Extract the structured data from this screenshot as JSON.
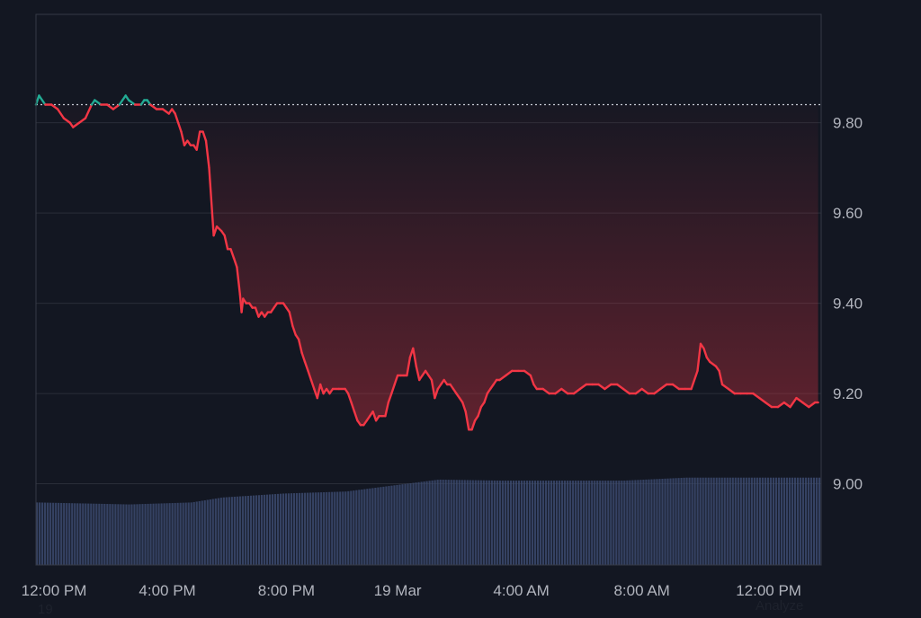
{
  "chart_data": {
    "type": "area",
    "title": "",
    "xlabel": "",
    "ylabel": "",
    "x_ticks": [
      "12:00 PM",
      "4:00 PM",
      "8:00 PM",
      "19 Mar",
      "4:00 AM",
      "8:00 AM",
      "12:00 PM"
    ],
    "y_ticks": [
      "9.80",
      "9.60",
      "9.40",
      "9.20",
      "9.00"
    ],
    "ylim": [
      8.82,
      10.04
    ],
    "xlim": [
      0,
      25.4
    ],
    "x_unit": "hours since 12:00 PM",
    "reference_price": 9.84,
    "grid": true,
    "colors": {
      "background": "#131722",
      "line_down": "#f23645",
      "line_up": "#22ab94",
      "grid": "#2a2e39",
      "volume": "#3c4a6e",
      "reference_line": "#c8ccd6"
    },
    "series": [
      {
        "values": [
          [
            0.0,
            9.84
          ],
          [
            0.1,
            9.86
          ],
          [
            0.3,
            9.84
          ],
          [
            0.5,
            9.84
          ],
          [
            0.7,
            9.83
          ],
          [
            0.9,
            9.81
          ],
          [
            1.1,
            9.8
          ],
          [
            1.2,
            9.79
          ],
          [
            1.4,
            9.8
          ],
          [
            1.6,
            9.81
          ],
          [
            1.8,
            9.84
          ],
          [
            1.9,
            9.85
          ],
          [
            2.1,
            9.84
          ],
          [
            2.3,
            9.84
          ],
          [
            2.5,
            9.83
          ],
          [
            2.7,
            9.84
          ],
          [
            2.8,
            9.85
          ],
          [
            2.9,
            9.86
          ],
          [
            3.0,
            9.85
          ],
          [
            3.2,
            9.84
          ],
          [
            3.4,
            9.84
          ],
          [
            3.5,
            9.85
          ],
          [
            3.6,
            9.85
          ],
          [
            3.7,
            9.84
          ],
          [
            3.9,
            9.83
          ],
          [
            4.1,
            9.83
          ],
          [
            4.3,
            9.82
          ],
          [
            4.4,
            9.83
          ],
          [
            4.5,
            9.82
          ],
          [
            4.6,
            9.8
          ],
          [
            4.7,
            9.78
          ],
          [
            4.8,
            9.75
          ],
          [
            4.9,
            9.76
          ],
          [
            5.0,
            9.75
          ],
          [
            5.1,
            9.75
          ],
          [
            5.2,
            9.74
          ],
          [
            5.3,
            9.78
          ],
          [
            5.4,
            9.78
          ],
          [
            5.5,
            9.76
          ],
          [
            5.6,
            9.7
          ],
          [
            5.7,
            9.6
          ],
          [
            5.75,
            9.55
          ],
          [
            5.85,
            9.57
          ],
          [
            6.0,
            9.56
          ],
          [
            6.1,
            9.55
          ],
          [
            6.2,
            9.52
          ],
          [
            6.3,
            9.52
          ],
          [
            6.4,
            9.5
          ],
          [
            6.5,
            9.48
          ],
          [
            6.6,
            9.42
          ],
          [
            6.65,
            9.38
          ],
          [
            6.7,
            9.41
          ],
          [
            6.8,
            9.4
          ],
          [
            6.9,
            9.4
          ],
          [
            7.0,
            9.39
          ],
          [
            7.1,
            9.39
          ],
          [
            7.2,
            9.37
          ],
          [
            7.3,
            9.38
          ],
          [
            7.4,
            9.37
          ],
          [
            7.5,
            9.38
          ],
          [
            7.6,
            9.38
          ],
          [
            7.7,
            9.39
          ],
          [
            7.8,
            9.4
          ],
          [
            7.9,
            9.4
          ],
          [
            8.0,
            9.4
          ],
          [
            8.1,
            9.39
          ],
          [
            8.2,
            9.38
          ],
          [
            8.3,
            9.35
          ],
          [
            8.4,
            9.33
          ],
          [
            8.5,
            9.32
          ],
          [
            8.6,
            9.29
          ],
          [
            8.7,
            9.27
          ],
          [
            8.8,
            9.25
          ],
          [
            8.9,
            9.23
          ],
          [
            9.0,
            9.21
          ],
          [
            9.1,
            9.19
          ],
          [
            9.2,
            9.22
          ],
          [
            9.3,
            9.2
          ],
          [
            9.4,
            9.21
          ],
          [
            9.5,
            9.2
          ],
          [
            9.6,
            9.21
          ],
          [
            9.8,
            9.21
          ],
          [
            10.0,
            9.21
          ],
          [
            10.1,
            9.2
          ],
          [
            10.2,
            9.18
          ],
          [
            10.3,
            9.16
          ],
          [
            10.4,
            9.14
          ],
          [
            10.5,
            9.13
          ],
          [
            10.6,
            9.13
          ],
          [
            10.7,
            9.14
          ],
          [
            10.8,
            9.15
          ],
          [
            10.9,
            9.16
          ],
          [
            11.0,
            9.14
          ],
          [
            11.1,
            9.15
          ],
          [
            11.2,
            9.15
          ],
          [
            11.3,
            9.15
          ],
          [
            11.4,
            9.18
          ],
          [
            11.5,
            9.2
          ],
          [
            11.6,
            9.22
          ],
          [
            11.7,
            9.24
          ],
          [
            11.8,
            9.24
          ],
          [
            11.9,
            9.24
          ],
          [
            12.0,
            9.24
          ],
          [
            12.1,
            9.28
          ],
          [
            12.2,
            9.3
          ],
          [
            12.3,
            9.26
          ],
          [
            12.4,
            9.23
          ],
          [
            12.5,
            9.24
          ],
          [
            12.6,
            9.25
          ],
          [
            12.7,
            9.24
          ],
          [
            12.8,
            9.23
          ],
          [
            12.9,
            9.19
          ],
          [
            13.0,
            9.21
          ],
          [
            13.1,
            9.22
          ],
          [
            13.2,
            9.23
          ],
          [
            13.3,
            9.22
          ],
          [
            13.4,
            9.22
          ],
          [
            13.5,
            9.21
          ],
          [
            13.6,
            9.2
          ],
          [
            13.7,
            9.19
          ],
          [
            13.8,
            9.18
          ],
          [
            13.9,
            9.16
          ],
          [
            14.0,
            9.12
          ],
          [
            14.1,
            9.12
          ],
          [
            14.2,
            9.14
          ],
          [
            14.3,
            9.15
          ],
          [
            14.4,
            9.17
          ],
          [
            14.5,
            9.18
          ],
          [
            14.6,
            9.2
          ],
          [
            14.7,
            9.21
          ],
          [
            14.8,
            9.22
          ],
          [
            14.9,
            9.23
          ],
          [
            15.0,
            9.23
          ],
          [
            15.2,
            9.24
          ],
          [
            15.4,
            9.25
          ],
          [
            15.6,
            9.25
          ],
          [
            15.8,
            9.25
          ],
          [
            16.0,
            9.24
          ],
          [
            16.1,
            9.22
          ],
          [
            16.2,
            9.21
          ],
          [
            16.4,
            9.21
          ],
          [
            16.6,
            9.2
          ],
          [
            16.8,
            9.2
          ],
          [
            17.0,
            9.21
          ],
          [
            17.2,
            9.2
          ],
          [
            17.4,
            9.2
          ],
          [
            17.6,
            9.21
          ],
          [
            17.8,
            9.22
          ],
          [
            18.0,
            9.22
          ],
          [
            18.2,
            9.22
          ],
          [
            18.4,
            9.21
          ],
          [
            18.6,
            9.22
          ],
          [
            18.8,
            9.22
          ],
          [
            19.0,
            9.21
          ],
          [
            19.2,
            9.2
          ],
          [
            19.4,
            9.2
          ],
          [
            19.6,
            9.21
          ],
          [
            19.8,
            9.2
          ],
          [
            20.0,
            9.2
          ],
          [
            20.2,
            9.21
          ],
          [
            20.4,
            9.22
          ],
          [
            20.6,
            9.22
          ],
          [
            20.8,
            9.21
          ],
          [
            21.0,
            9.21
          ],
          [
            21.2,
            9.21
          ],
          [
            21.4,
            9.25
          ],
          [
            21.5,
            9.31
          ],
          [
            21.6,
            9.3
          ],
          [
            21.7,
            9.28
          ],
          [
            21.8,
            9.27
          ],
          [
            22.0,
            9.26
          ],
          [
            22.1,
            9.25
          ],
          [
            22.2,
            9.22
          ],
          [
            22.4,
            9.21
          ],
          [
            22.6,
            9.2
          ],
          [
            22.8,
            9.2
          ],
          [
            23.0,
            9.2
          ],
          [
            23.2,
            9.2
          ],
          [
            23.4,
            9.19
          ],
          [
            23.6,
            9.18
          ],
          [
            23.8,
            9.17
          ],
          [
            24.0,
            9.17
          ],
          [
            24.2,
            9.18
          ],
          [
            24.4,
            9.17
          ],
          [
            24.6,
            9.19
          ],
          [
            24.8,
            9.18
          ],
          [
            25.0,
            9.17
          ],
          [
            25.2,
            9.18
          ],
          [
            25.3,
            9.18
          ]
        ]
      }
    ],
    "volume_profile": [
      [
        0,
        0.63
      ],
      [
        3,
        0.61
      ],
      [
        5,
        0.63
      ],
      [
        6,
        0.68
      ],
      [
        8,
        0.72
      ],
      [
        10,
        0.74
      ],
      [
        12,
        0.82
      ],
      [
        13,
        0.86
      ],
      [
        15,
        0.85
      ],
      [
        17,
        0.85
      ],
      [
        19,
        0.85
      ],
      [
        21,
        0.88
      ],
      [
        23,
        0.88
      ],
      [
        25.4,
        0.88
      ]
    ]
  },
  "overlay": {
    "bottom_left_fragment": "19",
    "bottom_right_text": "Analyze"
  }
}
